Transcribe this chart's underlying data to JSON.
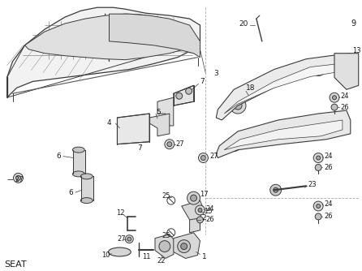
{
  "title": "SEAT",
  "bg_color": "#ffffff",
  "line_color": "#3a3a3a",
  "text_color": "#1a1a1a",
  "fig_width": 4.46,
  "fig_height": 3.34,
  "dpi": 100
}
